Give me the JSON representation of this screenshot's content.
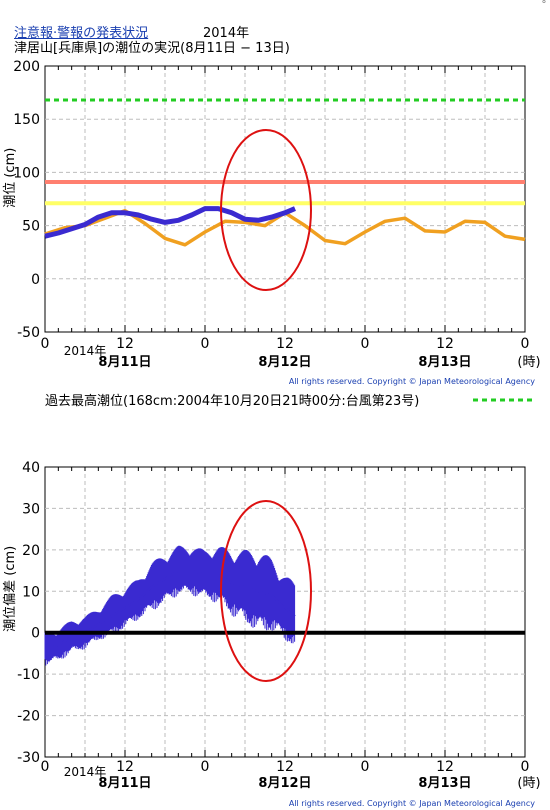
{
  "header": {
    "link": "注意報·警報の発表状況",
    "year": "2014年",
    "title": "津居山[兵庫県]の潮位の実況(8月11日 − 13日)",
    "corner_mark": "ₒ"
  },
  "chart_data": [
    {
      "type": "line",
      "ylabel": "潮位 (cm)",
      "ylim": [
        -50,
        200
      ],
      "yticks": [
        -50,
        0,
        50,
        100,
        150,
        200
      ],
      "xlim_hours": [
        0,
        72
      ],
      "xticks": [
        "0",
        "12",
        "0",
        "12",
        "0",
        "12",
        "0"
      ],
      "x_unit_label": "(時)",
      "date_labels": [
        "8月11日",
        "8月12日",
        "8月13日"
      ],
      "year_label": "2014年",
      "grid": true,
      "copyright": "All rights reserved. Copyright © Japan Meteorological Agency",
      "reference_lines": [
        {
          "name": "過去最高潮位(168cm:2004年10月20日21時00分:台風第23号)",
          "value": 168,
          "color": "#22cc22",
          "style": "dotted"
        },
        {
          "value": 91,
          "color": "#ff7f6f",
          "style": "solid"
        },
        {
          "value": 71,
          "color": "#ffff66",
          "style": "solid"
        }
      ],
      "series": [
        {
          "color": "#f0a020",
          "x": [
            0,
            3,
            6,
            9,
            12,
            15,
            18,
            21,
            24,
            27,
            30,
            33,
            36,
            39,
            42,
            45,
            48,
            51,
            54,
            57,
            60,
            63,
            66,
            69,
            72
          ],
          "values": [
            42,
            48,
            50,
            57,
            64,
            52,
            38,
            32,
            44,
            54,
            53,
            50,
            62,
            50,
            36,
            33,
            44,
            54,
            57,
            45,
            44,
            54,
            53,
            40,
            37
          ]
        },
        {
          "color": "#3a2ad0",
          "x": [
            0,
            2,
            4,
            6,
            8,
            10,
            12,
            14,
            16,
            18,
            20,
            22,
            24,
            26,
            28,
            30,
            32,
            34,
            36,
            37.5
          ],
          "values": [
            40,
            43,
            47,
            51,
            58,
            62,
            62,
            60,
            56,
            53,
            55,
            60,
            66,
            66,
            62,
            56,
            55,
            58,
            62,
            66
          ]
        }
      ],
      "annotation": {
        "shape": "ellipse",
        "color": "#dd1111"
      }
    },
    {
      "type": "line",
      "ylabel": "潮位偏差 (cm)",
      "ylim": [
        -30,
        40
      ],
      "yticks": [
        -30,
        -20,
        -10,
        0,
        10,
        20,
        30,
        40
      ],
      "xlim_hours": [
        0,
        72
      ],
      "xticks": [
        "0",
        "12",
        "0",
        "12",
        "0",
        "12",
        "0"
      ],
      "x_unit_label": "(時)",
      "date_labels": [
        "8月11日",
        "8月12日",
        "8月13日"
      ],
      "year_label": "2014年",
      "grid": true,
      "copyright": "All rights reserved. Copyright © Japan Meteorological Agency",
      "reference_lines": [
        {
          "value": 0,
          "color": "#000000",
          "style": "solid"
        }
      ],
      "series": [
        {
          "color": "#3a2ad0",
          "x": [
            0,
            2,
            4,
            6,
            8,
            10,
            12,
            14,
            16,
            18,
            20,
            22,
            24,
            26,
            28,
            30,
            32,
            34,
            36,
            37.5
          ],
          "values": [
            -4,
            -3,
            -1,
            0,
            2,
            4,
            6,
            8,
            11,
            13,
            15,
            15,
            14,
            14,
            12,
            11,
            10,
            9,
            6,
            4
          ],
          "spread": [
            4,
            4,
            4,
            4,
            4,
            5,
            5,
            5,
            6,
            6,
            6,
            6,
            6,
            7,
            8,
            9,
            10,
            9,
            8,
            8
          ]
        }
      ],
      "annotation": {
        "shape": "ellipse",
        "color": "#dd1111"
      }
    }
  ]
}
